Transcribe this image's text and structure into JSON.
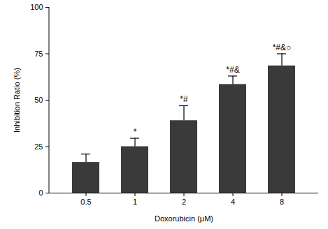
{
  "chart_data": {
    "type": "bar",
    "x_label": "Doxorubicin (μM)",
    "y_label": "Inhibition Ratio (%)",
    "categories": [
      "0.5",
      "1",
      "2",
      "4",
      "8"
    ],
    "values": [
      16.5,
      25,
      39,
      58.5,
      68.5
    ],
    "errors": [
      4.5,
      4.5,
      8,
      4.5,
      6.5
    ],
    "annotations": [
      null,
      "*",
      "*#",
      "*#&",
      "*#&○"
    ],
    "color": "#3a3a3a",
    "ylim": [
      0,
      100
    ],
    "yticks": [
      0,
      25,
      50,
      75,
      100
    ],
    "grid": false
  }
}
